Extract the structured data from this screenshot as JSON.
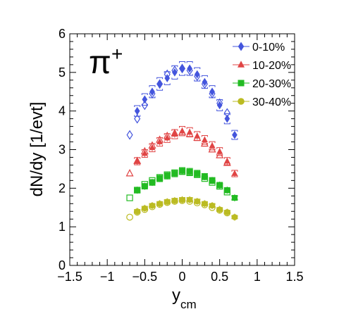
{
  "chart_data": {
    "type": "scatter",
    "title": "",
    "particle_label": "π",
    "particle_charge": "+",
    "xlabel": "y",
    "xlabel_sub": "cm",
    "ylabel": "dN/dy [1/evt]",
    "xlim": [
      -1.5,
      1.5
    ],
    "ylim": [
      0,
      6
    ],
    "x_ticks": [
      -1.5,
      -1,
      -0.5,
      0,
      0.5,
      1,
      1.5
    ],
    "x_tick_labels": [
      "−1.5",
      "−1",
      "−0.5",
      "0",
      "0.5",
      "1",
      "1.5"
    ],
    "y_ticks": [
      0,
      1,
      2,
      3,
      4,
      5,
      6
    ],
    "y_tick_labels": [
      "0",
      "1",
      "2",
      "3",
      "4",
      "5",
      "6"
    ],
    "grid": false,
    "legend_position": "top-right",
    "x_measured": [
      -0.6,
      -0.5,
      -0.4,
      -0.3,
      -0.2,
      -0.1,
      0.0,
      0.1,
      0.2,
      0.3,
      0.4,
      0.5,
      0.6,
      0.7
    ],
    "x_reflected": [
      -0.7,
      -0.6,
      -0.5,
      -0.4,
      -0.3,
      -0.2,
      -0.1,
      0.0,
      0.1,
      0.2,
      0.3,
      0.4,
      0.5,
      0.6
    ],
    "series": [
      {
        "name": "0-10%",
        "marker": "diamond",
        "color": "#4455dd",
        "measured": [
          4.0,
          4.3,
          4.5,
          4.7,
          4.85,
          5.0,
          5.1,
          5.1,
          4.95,
          4.75,
          4.5,
          4.15,
          3.8,
          3.38
        ],
        "reflected": [
          3.38,
          3.8,
          4.15,
          4.45,
          4.7,
          4.95,
          5.05,
          5.1,
          5.05,
          4.9,
          4.7,
          4.45,
          4.2,
          3.95
        ]
      },
      {
        "name": "10-20%",
        "marker": "triangle",
        "color": "#e04444",
        "measured": [
          2.7,
          2.9,
          3.05,
          3.2,
          3.3,
          3.4,
          3.48,
          3.45,
          3.35,
          3.25,
          3.1,
          2.95,
          2.7,
          2.38
        ],
        "reflected": [
          2.38,
          2.7,
          2.95,
          3.1,
          3.25,
          3.35,
          3.42,
          3.45,
          3.4,
          3.3,
          3.15,
          3.0,
          2.85,
          2.65
        ]
      },
      {
        "name": "20-30%",
        "marker": "square",
        "color": "#22bb22",
        "measured": [
          1.95,
          2.05,
          2.15,
          2.25,
          2.32,
          2.38,
          2.45,
          2.43,
          2.38,
          2.3,
          2.2,
          2.08,
          1.95,
          1.75
        ],
        "reflected": [
          1.75,
          1.95,
          2.1,
          2.2,
          2.28,
          2.35,
          2.4,
          2.43,
          2.4,
          2.35,
          2.25,
          2.15,
          2.05,
          1.9
        ]
      },
      {
        "name": "30-40%",
        "marker": "circle",
        "color": "#bbbb22",
        "measured": [
          1.4,
          1.48,
          1.55,
          1.6,
          1.65,
          1.68,
          1.7,
          1.7,
          1.66,
          1.6,
          1.55,
          1.45,
          1.38,
          1.25
        ],
        "reflected": [
          1.25,
          1.38,
          1.45,
          1.52,
          1.58,
          1.63,
          1.66,
          1.68,
          1.66,
          1.62,
          1.57,
          1.5,
          1.43,
          1.36
        ]
      }
    ]
  }
}
